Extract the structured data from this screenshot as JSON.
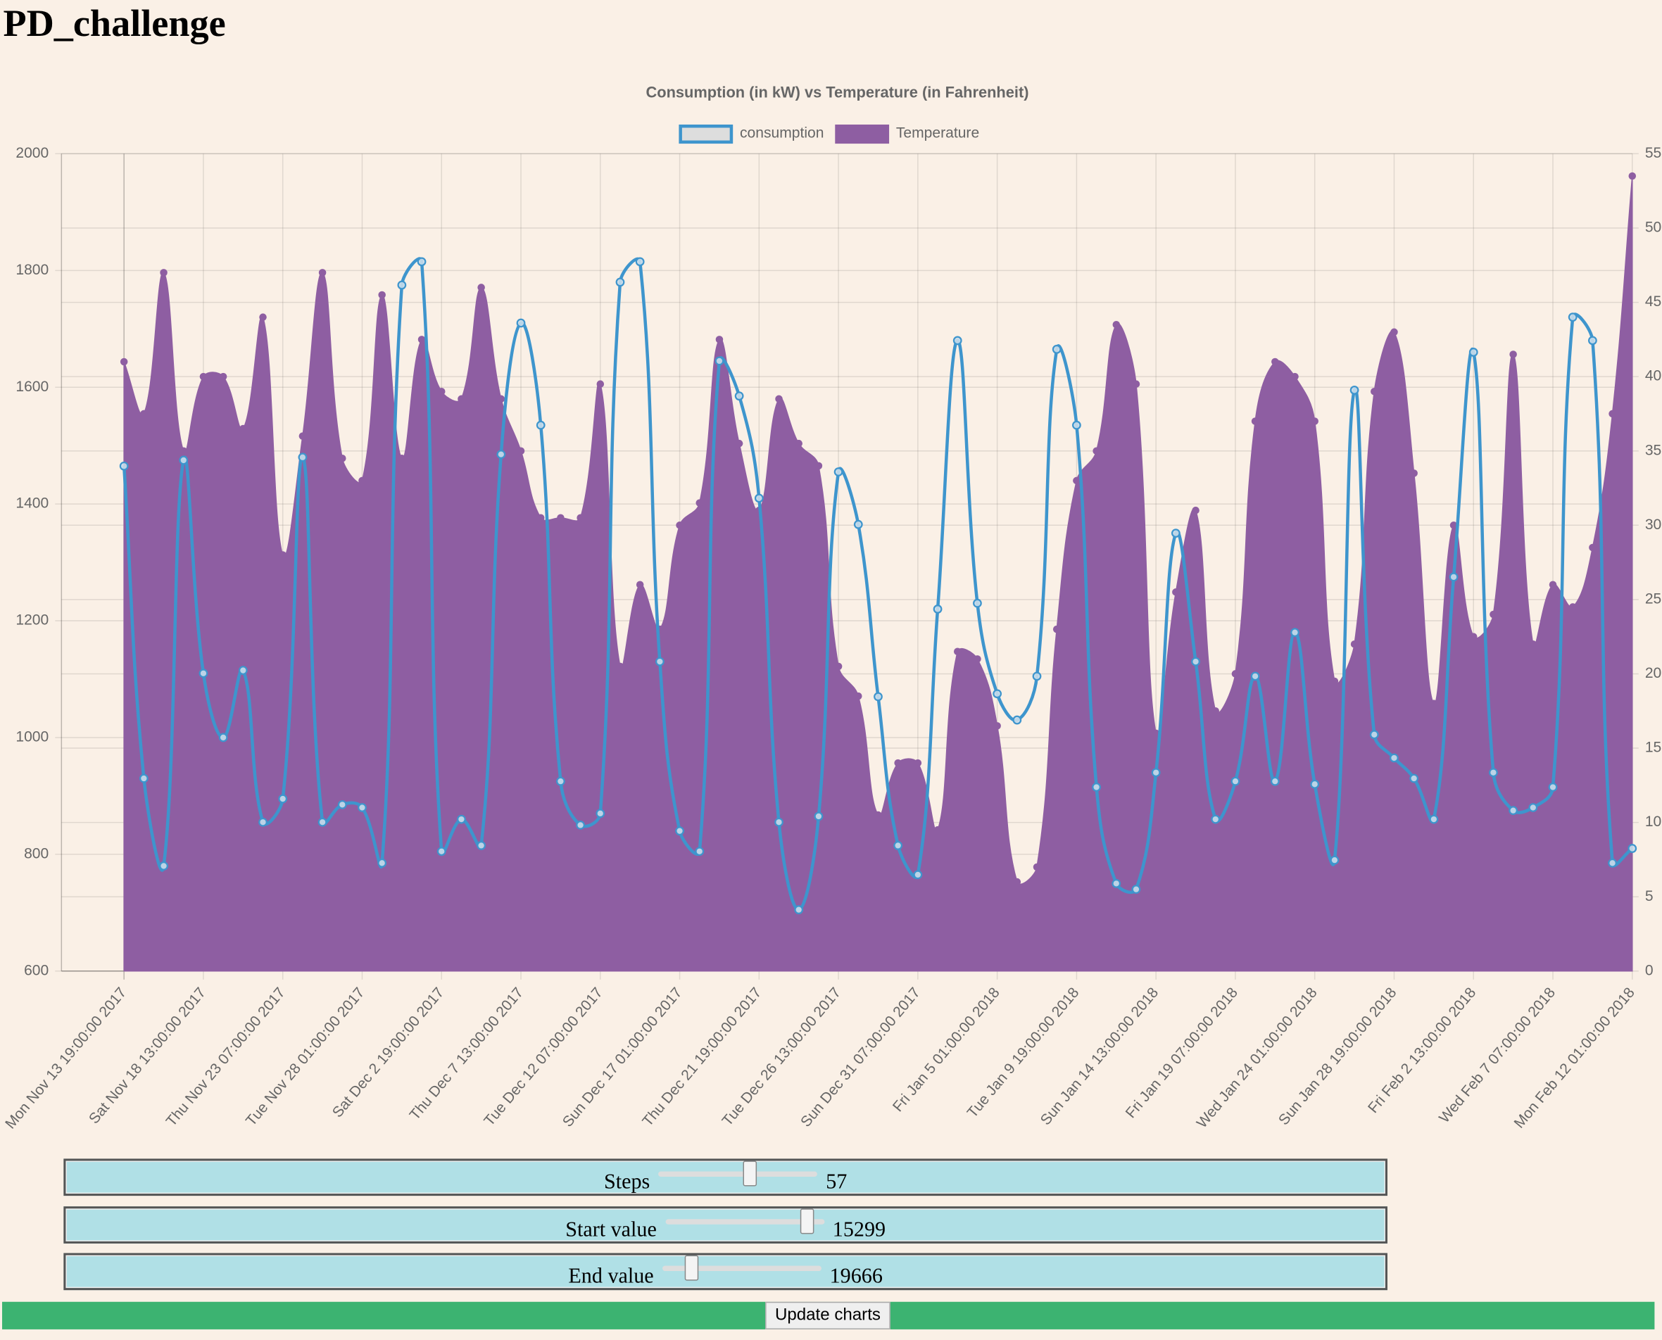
{
  "page": {
    "title": "PD_challenge"
  },
  "chart_data": {
    "type": "line",
    "title": "Consumption (in kW) vs Temperature (in Fahrenheit)",
    "categories": [
      "Mon Nov 13 19:00:00 2017",
      null,
      null,
      null,
      "Sat Nov 18 13:00:00 2017",
      null,
      null,
      null,
      "Thu Nov 23 07:00:00 2017",
      null,
      null,
      null,
      "Tue Nov 28 01:00:00 2017",
      null,
      null,
      null,
      "Sat Dec  2 19:00:00 2017",
      null,
      null,
      null,
      "Thu Dec  7 13:00:00 2017",
      null,
      null,
      null,
      "Tue Dec 12 07:00:00 2017",
      null,
      null,
      null,
      "Sun Dec 17 01:00:00 2017",
      null,
      null,
      null,
      "Thu Dec 21 19:00:00 2017",
      null,
      null,
      null,
      "Tue Dec 26 13:00:00 2017",
      null,
      null,
      null,
      "Sun Dec 31 07:00:00 2017",
      null,
      null,
      null,
      "Fri Jan  5 01:00:00 2018",
      null,
      null,
      null,
      "Tue Jan  9 19:00:00 2018",
      null,
      null,
      null,
      "Sun Jan 14 13:00:00 2018",
      null,
      null,
      null,
      "Fri Jan 19 07:00:00 2018",
      null,
      null,
      null,
      "Wed Jan 24 01:00:00 2018",
      null,
      null,
      null,
      "Sun Jan 28 19:00:00 2018",
      null,
      null,
      null,
      "Fri Feb  2 13:00:00 2018",
      null,
      null,
      null,
      "Wed Feb  7 07:00:00 2018",
      null,
      null,
      null,
      "Mon Feb 12 01:00:00 2018"
    ],
    "series": [
      {
        "name": "consumption",
        "color": "#3e95cd",
        "fill": false,
        "values": [
          1465,
          930,
          780,
          1475,
          1110,
          1000,
          1115,
          855,
          895,
          1480,
          855,
          885,
          880,
          785,
          1775,
          1815,
          805,
          860,
          815,
          1485,
          1710,
          1535,
          925,
          850,
          870,
          1780,
          1815,
          1130,
          840,
          805,
          1645,
          1585,
          1410,
          855,
          705,
          865,
          1455,
          1365,
          1070,
          815,
          765,
          1220,
          1680,
          1230,
          1075,
          1030,
          1105,
          1665,
          1535,
          915,
          750,
          740,
          940,
          1350,
          1130,
          860,
          925,
          1105,
          925,
          1180,
          920,
          790,
          1595,
          1005,
          965,
          930,
          860,
          1275,
          1660,
          940,
          875,
          880,
          915,
          1720,
          1680,
          785,
          810
        ]
      },
      {
        "name": "Temperature",
        "color": "#8e5ea2",
        "fill": true,
        "axis": "y2",
        "values": [
          41,
          37.5,
          47,
          35,
          40,
          40,
          36.5,
          44,
          28,
          36,
          47,
          34.5,
          33,
          45.5,
          34.5,
          42.5,
          39,
          38.5,
          46,
          38.5,
          35,
          30.5,
          30.5,
          30.5,
          39.5,
          20.5,
          26,
          23,
          30,
          31.5,
          42.5,
          35.5,
          31,
          38.5,
          35.5,
          34,
          20.5,
          18.5,
          10.5,
          14,
          14,
          9.5,
          21.5,
          21,
          16.5,
          6,
          7,
          23,
          33,
          35,
          43.5,
          39.5,
          16,
          25.5,
          31,
          17.5,
          20,
          37,
          41,
          40,
          37,
          19.5,
          22,
          39,
          43,
          33.5,
          18,
          30,
          22.5,
          24,
          41.5,
          22,
          26,
          24.5,
          28.5,
          37.5,
          53.5
        ]
      }
    ],
    "ylim": [
      600,
      2000
    ],
    "yticks": [
      600,
      800,
      1000,
      1200,
      1400,
      1600,
      1800,
      2000
    ],
    "y2lim": [
      0,
      55
    ],
    "y2ticks": [
      0,
      5,
      10,
      15,
      20,
      25,
      30,
      35,
      40,
      45,
      50,
      55
    ],
    "grid": true,
    "legend": "top"
  },
  "controls": [
    {
      "label": "Steps",
      "value": 57
    },
    {
      "label": "Start value",
      "value": 15299
    },
    {
      "label": "End value",
      "value": 19666
    }
  ],
  "button": "Update charts"
}
